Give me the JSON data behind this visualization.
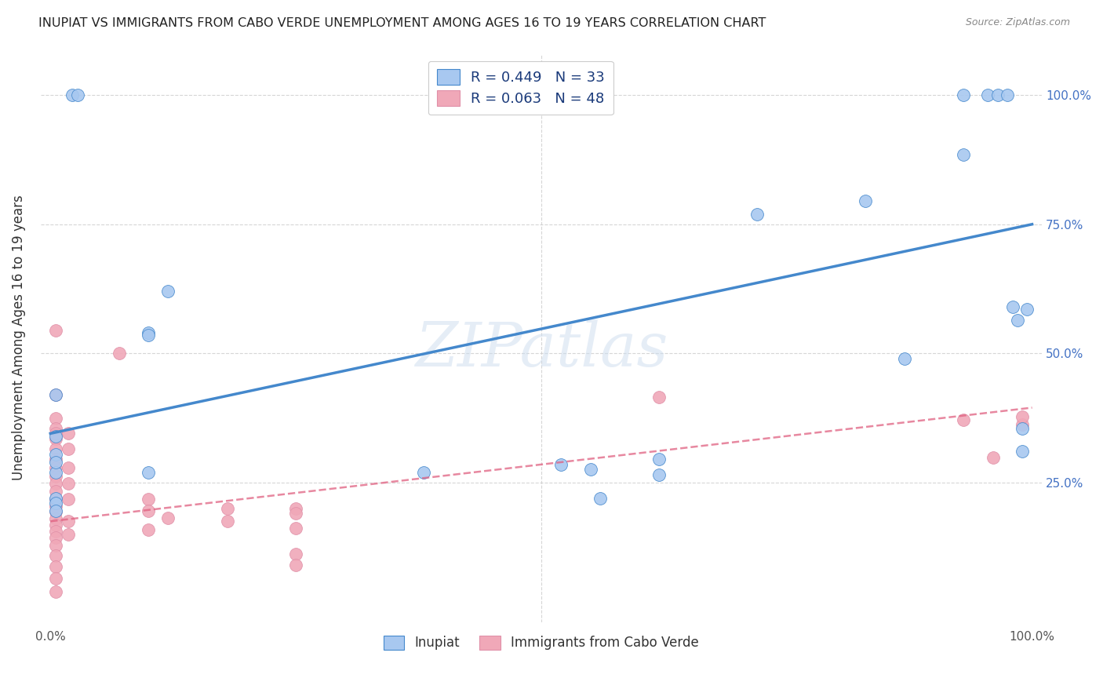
{
  "title": "INUPIAT VS IMMIGRANTS FROM CABO VERDE UNEMPLOYMENT AMONG AGES 16 TO 19 YEARS CORRELATION CHART",
  "source": "Source: ZipAtlas.com",
  "ylabel": "Unemployment Among Ages 16 to 19 years",
  "legend_label1": "Inupiat",
  "legend_label2": "Immigrants from Cabo Verde",
  "r1": 0.449,
  "n1": 33,
  "r2": 0.063,
  "n2": 48,
  "color1": "#a8c8f0",
  "color2": "#f0a8b8",
  "line_color1": "#4488cc",
  "line_color2": "#e06080",
  "watermark": "ZIPatlas",
  "xmin": 0.0,
  "xmax": 1.0,
  "ymin": 0.0,
  "ymax": 1.0,
  "blue_intercept": 0.345,
  "blue_slope": 0.405,
  "pink_intercept": 0.175,
  "pink_slope": 0.22,
  "blue_points": [
    [
      0.022,
      1.0
    ],
    [
      0.028,
      1.0
    ],
    [
      0.12,
      0.62
    ],
    [
      0.1,
      0.54
    ],
    [
      0.005,
      0.42
    ],
    [
      0.005,
      0.34
    ],
    [
      0.1,
      0.27
    ],
    [
      0.005,
      0.27
    ],
    [
      0.1,
      0.535
    ],
    [
      0.38,
      0.27
    ],
    [
      0.52,
      0.285
    ],
    [
      0.56,
      0.22
    ],
    [
      0.55,
      0.275
    ],
    [
      0.62,
      0.295
    ],
    [
      0.62,
      0.265
    ],
    [
      0.72,
      0.77
    ],
    [
      0.83,
      0.795
    ],
    [
      0.87,
      0.49
    ],
    [
      0.93,
      0.885
    ],
    [
      0.93,
      1.0
    ],
    [
      0.955,
      1.0
    ],
    [
      0.965,
      1.0
    ],
    [
      0.975,
      1.0
    ],
    [
      0.98,
      0.59
    ],
    [
      0.985,
      0.565
    ],
    [
      0.99,
      0.355
    ],
    [
      0.99,
      0.31
    ],
    [
      0.995,
      0.585
    ],
    [
      0.005,
      0.305
    ],
    [
      0.005,
      0.29
    ],
    [
      0.005,
      0.22
    ],
    [
      0.005,
      0.21
    ],
    [
      0.005,
      0.195
    ]
  ],
  "pink_points": [
    [
      0.005,
      0.545
    ],
    [
      0.005,
      0.42
    ],
    [
      0.005,
      0.375
    ],
    [
      0.005,
      0.355
    ],
    [
      0.005,
      0.335
    ],
    [
      0.005,
      0.315
    ],
    [
      0.005,
      0.295
    ],
    [
      0.005,
      0.278
    ],
    [
      0.005,
      0.262
    ],
    [
      0.005,
      0.248
    ],
    [
      0.005,
      0.233
    ],
    [
      0.005,
      0.218
    ],
    [
      0.005,
      0.205
    ],
    [
      0.005,
      0.193
    ],
    [
      0.005,
      0.18
    ],
    [
      0.005,
      0.168
    ],
    [
      0.005,
      0.156
    ],
    [
      0.005,
      0.143
    ],
    [
      0.005,
      0.128
    ],
    [
      0.005,
      0.108
    ],
    [
      0.005,
      0.088
    ],
    [
      0.005,
      0.065
    ],
    [
      0.005,
      0.038
    ],
    [
      0.018,
      0.345
    ],
    [
      0.018,
      0.315
    ],
    [
      0.018,
      0.278
    ],
    [
      0.018,
      0.248
    ],
    [
      0.018,
      0.218
    ],
    [
      0.018,
      0.175
    ],
    [
      0.018,
      0.15
    ],
    [
      0.07,
      0.5
    ],
    [
      0.1,
      0.218
    ],
    [
      0.1,
      0.195
    ],
    [
      0.1,
      0.158
    ],
    [
      0.12,
      0.182
    ],
    [
      0.18,
      0.2
    ],
    [
      0.18,
      0.175
    ],
    [
      0.25,
      0.2
    ],
    [
      0.25,
      0.19
    ],
    [
      0.25,
      0.162
    ],
    [
      0.25,
      0.112
    ],
    [
      0.25,
      0.09
    ],
    [
      0.62,
      0.415
    ],
    [
      0.93,
      0.372
    ],
    [
      0.96,
      0.298
    ],
    [
      0.99,
      0.362
    ],
    [
      0.99,
      0.378
    ],
    [
      0.005,
      0.345
    ]
  ]
}
